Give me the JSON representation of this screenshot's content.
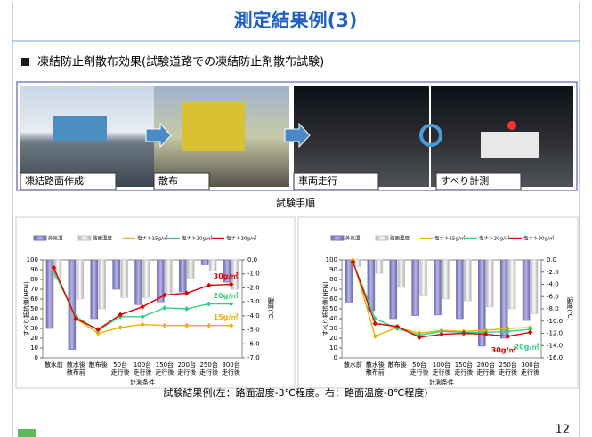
{
  "header": {
    "title": "測定結果例(3)"
  },
  "bullet": "凍結防止剤散布効果(試験道路での凍結防止剤散布試験)",
  "steps": [
    "凍結路面作成",
    "散布",
    "車両走行",
    "すべり計測"
  ],
  "steps_caption": "試験手順",
  "results_caption": "試験結果例(左：路面温度-3℃程度。右：路面温度-8℃程度)",
  "page_number": "12",
  "chart_data": [
    {
      "type": "bar-line",
      "y_label": "すべり抵抗値(HFN)",
      "y2_label": "温度(℃)",
      "x_label": "計測条件",
      "categories": [
        "散水前",
        "散水後\n散布前",
        "散布後",
        "50台\n走行後",
        "100台\n走行後",
        "150台\n走行後",
        "200台\n走行後",
        "250台\n走行後",
        "300台\n走行後"
      ],
      "ylim": [
        0,
        100
      ],
      "yticks": [
        0,
        10,
        20,
        30,
        40,
        50,
        60,
        70,
        80,
        90,
        100
      ],
      "y2lim": [
        -7,
        0
      ],
      "y2ticks": [
        {
          "value": 0,
          "label": "0.0"
        },
        {
          "value": -1,
          "label": "-1.0"
        },
        {
          "value": -2,
          "label": "-2.0"
        },
        {
          "value": -3,
          "label": "-3.0"
        },
        {
          "value": -4,
          "label": "-4.0"
        },
        {
          "value": -5,
          "label": "-5.0"
        },
        {
          "value": -6,
          "label": "-6.0"
        },
        {
          "value": -7,
          "label": "-7.0"
        }
      ],
      "series": [
        {
          "name": "外気温",
          "kind": "bar",
          "axis": "y2",
          "color": "#7472b8",
          "values": [
            -4.9,
            -6.4,
            -4.2,
            -2.1,
            -3.2,
            -3.0,
            -2.3,
            -0.35,
            -1.6
          ]
        },
        {
          "name": "路面温度",
          "kind": "bar",
          "axis": "y2",
          "color": "#c8c8c8",
          "values": [
            -1.4,
            -2.8,
            -3.5,
            -2.7,
            -2.7,
            -2.5,
            -1.3,
            -0.8,
            -2.1
          ]
        },
        {
          "name": "塩ナト15g/㎡",
          "kind": "line",
          "color": "#f0b000",
          "end_label": "15g/㎡",
          "values": [
            90,
            40,
            25,
            31,
            34,
            33,
            33,
            33,
            33
          ]
        },
        {
          "name": "塩ナト20g/㎡",
          "kind": "line",
          "color": "#30d080",
          "end_label": "20g/㎡",
          "values": [
            88,
            42,
            28,
            42,
            42,
            51,
            50,
            55,
            55
          ]
        },
        {
          "name": "塩ナト30g/㎡",
          "kind": "line",
          "color": "#e00000",
          "end_label": "30g/㎡",
          "values": [
            92,
            40,
            29,
            44,
            52,
            64,
            66,
            74,
            75
          ]
        }
      ]
    },
    {
      "type": "bar-line",
      "y_label": "すべり抵抗値(HFN)",
      "y2_label": "温度(℃)",
      "x_label": "計測条件",
      "categories": [
        "散水前",
        "散水後\n散布前",
        "散布後",
        "50台\n走行後",
        "100台\n走行後",
        "150台\n走行後",
        "200台\n走行後",
        "250台\n走行後",
        "300台\n走行後"
      ],
      "ylim": [
        0,
        100
      ],
      "yticks": [
        0,
        10,
        20,
        30,
        40,
        50,
        60,
        70,
        80,
        90,
        100
      ],
      "y2lim": [
        -16,
        0
      ],
      "y2ticks": [
        {
          "value": 0,
          "label": "0.0"
        },
        {
          "value": -2,
          "label": "-2.0"
        },
        {
          "value": -4,
          "label": "-4.0"
        },
        {
          "value": -6,
          "label": "-6.0"
        },
        {
          "value": -8,
          "label": "-8.0"
        },
        {
          "value": -10,
          "label": "-10.0"
        },
        {
          "value": -12,
          "label": "-12.0"
        },
        {
          "value": -14,
          "label": "-14.0"
        },
        {
          "value": -16,
          "label": "-16.0"
        }
      ],
      "series": [
        {
          "name": "外気温",
          "kind": "bar",
          "axis": "y2",
          "color": "#7472b8",
          "values": [
            -6.9,
            -8.3,
            -9.6,
            -9.1,
            -9.0,
            -9.6,
            -14.1,
            -12.8,
            -9.9
          ]
        },
        {
          "name": "路面温度",
          "kind": "bar",
          "axis": "y2",
          "color": "#c8c8c8",
          "values": [
            -1.1,
            -2.2,
            -4.5,
            -5.9,
            -6.4,
            -6.7,
            -7.7,
            -8.0,
            -8.8
          ]
        },
        {
          "name": "塩ナト15g/㎡",
          "kind": "line",
          "color": "#f0b000",
          "values": [
            100,
            22,
            31,
            25,
            28,
            27,
            28,
            30,
            31
          ]
        },
        {
          "name": "塩ナト20g/㎡",
          "kind": "line",
          "color": "#30d080",
          "end_label": "20g/㎡",
          "values": [
            98,
            40,
            30,
            23,
            27,
            26,
            26,
            27,
            29
          ]
        },
        {
          "name": "塩ナト30g/㎡",
          "kind": "line",
          "color": "#e00000",
          "end_label": "30g/㎡",
          "values": [
            98,
            35,
            32,
            21,
            24,
            25,
            24,
            22,
            26
          ]
        }
      ]
    }
  ]
}
